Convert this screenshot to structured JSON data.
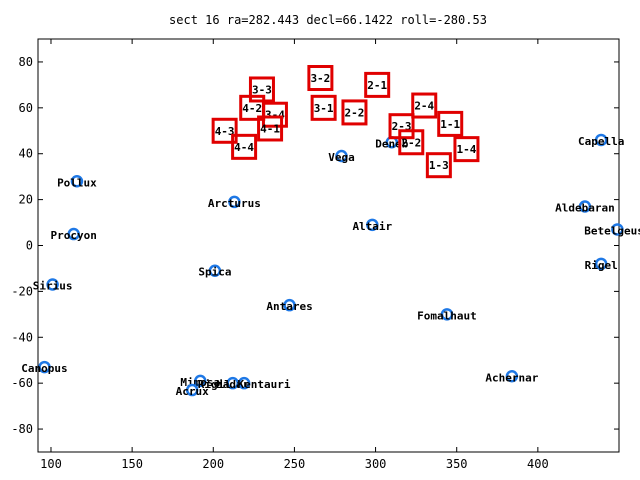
{
  "colors": {
    "star": "#1e78e6",
    "sensor": "#e00000",
    "axis": "#000000"
  },
  "chart_data": {
    "type": "scatter",
    "title": "sect 16 ra=282.443 decl=66.1422 roll=-280.53",
    "xlabel": "",
    "ylabel": "",
    "xlim": [
      92,
      450
    ],
    "ylim": [
      -90,
      90
    ],
    "xticks": [
      100,
      150,
      200,
      250,
      300,
      350,
      400
    ],
    "yticks": [
      80,
      60,
      40,
      20,
      0,
      -20,
      -40,
      -60,
      -80
    ],
    "grid": false,
    "series": [
      {
        "kind": "stars",
        "points": [
          {
            "label": "Pollux",
            "x": 116,
            "y": 28
          },
          {
            "label": "Procyon",
            "x": 114,
            "y": 5
          },
          {
            "label": "Sirius",
            "x": 101,
            "y": -17
          },
          {
            "label": "Canopus",
            "x": 96,
            "y": -53
          },
          {
            "label": "Arcturus",
            "x": 213,
            "y": 19
          },
          {
            "label": "Spica",
            "x": 201,
            "y": -11
          },
          {
            "label": "Antares",
            "x": 247,
            "y": -26
          },
          {
            "label": "Vega",
            "x": 279,
            "y": 39
          },
          {
            "label": "Altair",
            "x": 298,
            "y": 9
          },
          {
            "label": "Deneb",
            "x": 310,
            "y": 45
          },
          {
            "label": "Fomalhaut",
            "x": 344,
            "y": -30
          },
          {
            "label": "Achernar",
            "x": 384,
            "y": -57
          },
          {
            "label": "Capella",
            "x": 439,
            "y": 46
          },
          {
            "label": "Aldebaran",
            "x": 429,
            "y": 17
          },
          {
            "label": "Betelgeuse",
            "x": 449,
            "y": 7
          },
          {
            "label": "Rigel",
            "x": 439,
            "y": -8
          },
          {
            "label": "Mimosa",
            "x": 192,
            "y": -59
          },
          {
            "label": "Hadar",
            "x": 212,
            "y": -60
          },
          {
            "label": "Rigil Kentauri",
            "x": 219,
            "y": -60
          },
          {
            "label": "Acrux",
            "x": 187,
            "y": -63
          }
        ]
      },
      {
        "kind": "sensors",
        "boxes": [
          {
            "label": "3-2",
            "x": 266,
            "y": 73
          },
          {
            "label": "2-1",
            "x": 301,
            "y": 70
          },
          {
            "label": "3-3",
            "x": 230,
            "y": 68
          },
          {
            "label": "4-2",
            "x": 224,
            "y": 60
          },
          {
            "label": "3-1",
            "x": 268,
            "y": 60
          },
          {
            "label": "2-2",
            "x": 287,
            "y": 58
          },
          {
            "label": "3-4",
            "x": 238,
            "y": 57
          },
          {
            "label": "2-4",
            "x": 330,
            "y": 61
          },
          {
            "label": "2-3",
            "x": 316,
            "y": 52
          },
          {
            "label": "1-1",
            "x": 346,
            "y": 53
          },
          {
            "label": "4-1",
            "x": 235,
            "y": 51
          },
          {
            "label": "4-3",
            "x": 207,
            "y": 50
          },
          {
            "label": "4-4",
            "x": 219,
            "y": 43
          },
          {
            "label": "2-2",
            "x": 322,
            "y": 45
          },
          {
            "label": "1-4",
            "x": 356,
            "y": 42
          },
          {
            "label": "1-3",
            "x": 339,
            "y": 35
          }
        ]
      }
    ]
  }
}
